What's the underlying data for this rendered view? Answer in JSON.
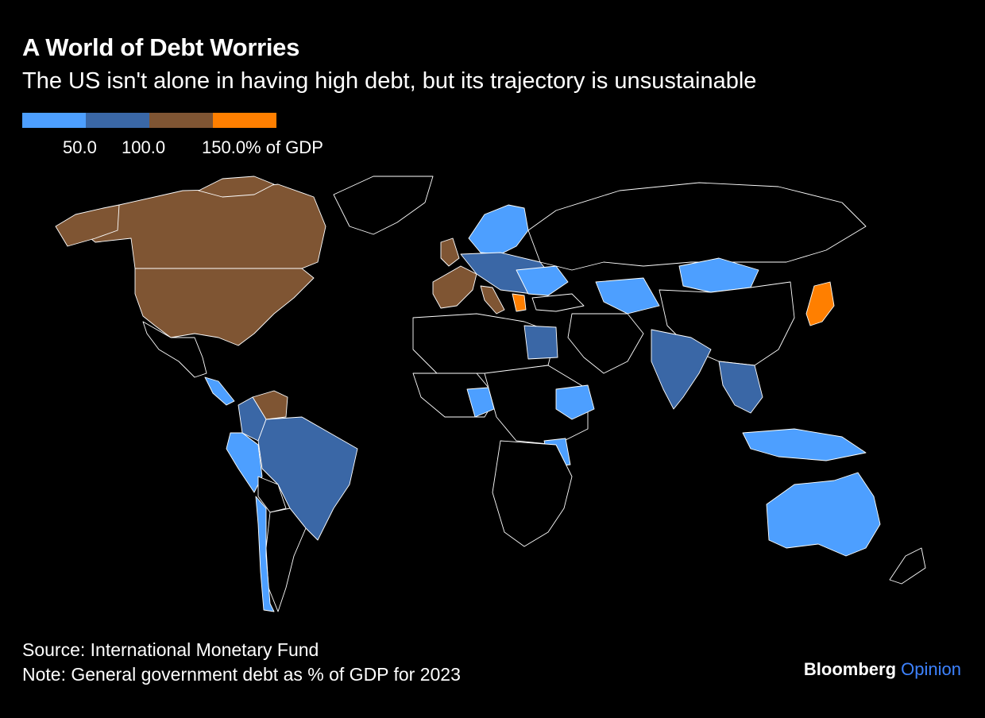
{
  "header": {
    "title": "A World of Debt Worries",
    "subtitle": "The US isn't alone in having high debt, but its trajectory is unsustainable"
  },
  "legend": {
    "bins": [
      {
        "color": "#4d9fff"
      },
      {
        "color": "#3a67a6"
      },
      {
        "color": "#7f5533"
      },
      {
        "color": "#ff7f00"
      }
    ],
    "ticks": [
      "50.0",
      "100.0",
      "150.0% of GDP"
    ]
  },
  "colors": {
    "background": "#000000",
    "border": "#ffffff",
    "no_data": "#000000"
  },
  "footer": {
    "source": "Source: International Monetary Fund",
    "note": "Note: General government debt as % of GDP for 2023"
  },
  "brand": {
    "name": "Bloomberg",
    "product": "Opinion"
  }
}
